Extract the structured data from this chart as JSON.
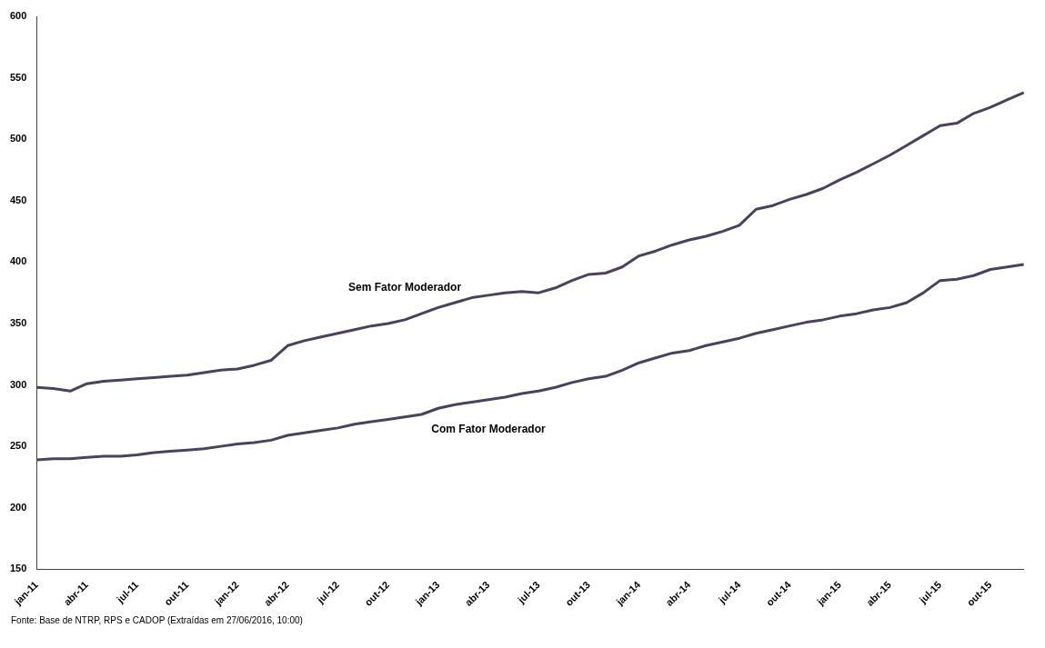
{
  "chart_data": {
    "type": "line",
    "categories": [
      "jan-11",
      null,
      null,
      "abr-11",
      null,
      null,
      "jul-11",
      null,
      null,
      "out-11",
      null,
      null,
      "jan-12",
      null,
      null,
      "abr-12",
      null,
      null,
      "jul-12",
      null,
      null,
      "out-12",
      null,
      null,
      "jan-13",
      null,
      null,
      "abr-13",
      null,
      null,
      "jul-13",
      null,
      null,
      "out-13",
      null,
      null,
      "jan-14",
      null,
      null,
      "abr-14",
      null,
      null,
      "jul-14",
      null,
      null,
      "out-14",
      null,
      null,
      "jan-15",
      null,
      null,
      "abr-15",
      null,
      null,
      "jul-15",
      null,
      null,
      "out-15",
      null,
      null
    ],
    "series": [
      {
        "name": "Sem Fator Moderador",
        "color": "#4a4060",
        "values": [
          298,
          297,
          295,
          301,
          303,
          304,
          305,
          306,
          307,
          308,
          310,
          312,
          313,
          316,
          320,
          332,
          336,
          339,
          342,
          345,
          348,
          350,
          353,
          358,
          363,
          367,
          371,
          373,
          375,
          376,
          375,
          379,
          385,
          390,
          391,
          396,
          405,
          409,
          414,
          418,
          421,
          425,
          430,
          443,
          446,
          451,
          455,
          460,
          467,
          473,
          480,
          487,
          495,
          503,
          511,
          513,
          521,
          526,
          532,
          538
        ]
      },
      {
        "name": "Com Fator Moderador",
        "color": "#4a4060",
        "values": [
          239,
          240,
          240,
          241,
          242,
          242,
          243,
          245,
          246,
          247,
          248,
          250,
          252,
          253,
          255,
          259,
          261,
          263,
          265,
          268,
          270,
          272,
          274,
          276,
          281,
          284,
          286,
          288,
          290,
          293,
          295,
          298,
          302,
          305,
          307,
          312,
          318,
          322,
          326,
          328,
          332,
          335,
          338,
          342,
          345,
          348,
          351,
          353,
          356,
          358,
          361,
          363,
          367,
          375,
          385,
          386,
          389,
          394,
          396,
          398
        ]
      }
    ],
    "ylim": [
      150,
      600
    ],
    "yticks": [
      150,
      200,
      250,
      300,
      350,
      400,
      450,
      500,
      550,
      600
    ],
    "grid": false,
    "legend": false,
    "marker": "none",
    "line_style": "solid",
    "annotations": [
      "Fonte: Base de NTRP, RPS e CADOP (Extraídas em 27/06/2016, 10:00)"
    ]
  }
}
